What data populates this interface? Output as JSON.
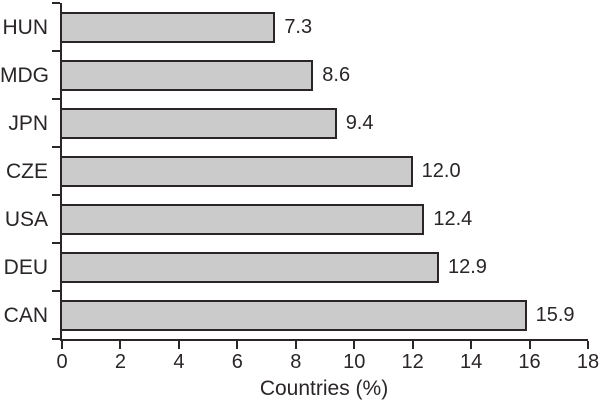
{
  "chart_data": {
    "type": "bar",
    "orientation": "horizontal",
    "title": "",
    "xlabel": "Countries (%)",
    "ylabel": "",
    "categories": [
      "HUN",
      "MDG",
      "JPN",
      "CZE",
      "USA",
      "DEU",
      "CAN"
    ],
    "values": [
      7.3,
      8.6,
      9.4,
      12.0,
      12.4,
      12.9,
      15.9
    ],
    "value_labels": [
      "7.3",
      "8.6",
      "9.4",
      "12.0",
      "12.4",
      "12.9",
      "15.9"
    ],
    "xlim": [
      0,
      18
    ],
    "x_ticks": [
      0,
      2,
      4,
      6,
      8,
      10,
      12,
      14,
      16,
      18
    ],
    "grid": false,
    "legend": false,
    "colors": {
      "bar_fill": "#cbcbcb",
      "bar_border": "#2a2627",
      "axis": "#2a2627",
      "text": "#2a2627",
      "background": "#ffffff"
    }
  }
}
